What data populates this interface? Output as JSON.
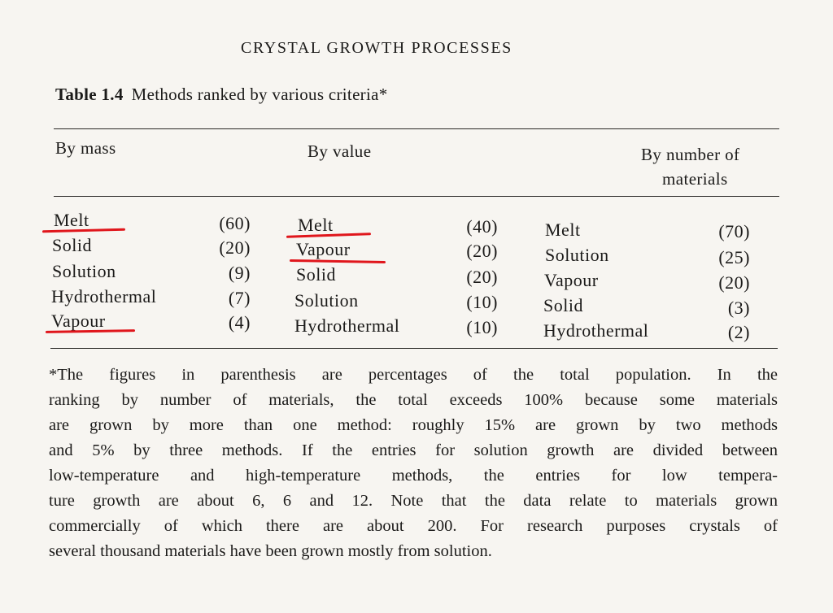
{
  "running_head": "CRYSTAL GROWTH PROCESSES",
  "table": {
    "label": "Table 1.4",
    "title": "Methods ranked by various criteria*",
    "columns": [
      {
        "header": "By mass",
        "rows": [
          {
            "method": "Melt",
            "pct": "(60)",
            "underlined": true
          },
          {
            "method": "Solid",
            "pct": "(20)",
            "underlined": false
          },
          {
            "method": "Solution",
            "pct": "(9)",
            "underlined": false
          },
          {
            "method": "Hydrothermal",
            "pct": "(7)",
            "underlined": false
          },
          {
            "method": "Vapour",
            "pct": "(4)",
            "underlined": true
          }
        ]
      },
      {
        "header": "By value",
        "rows": [
          {
            "method": "Melt",
            "pct": "(40)",
            "underlined": true
          },
          {
            "method": "Vapour",
            "pct": "(20)",
            "underlined": true
          },
          {
            "method": "Solid",
            "pct": "(20)",
            "underlined": false
          },
          {
            "method": "Solution",
            "pct": "(10)",
            "underlined": false
          },
          {
            "method": "Hydrothermal",
            "pct": "(10)",
            "underlined": false
          }
        ]
      },
      {
        "header_line1": "By number of",
        "header_line2": "materials",
        "rows": [
          {
            "method": "Melt",
            "pct": "(70)",
            "underlined": false
          },
          {
            "method": "Solution",
            "pct": "(25)",
            "underlined": false
          },
          {
            "method": "Vapour",
            "pct": "(20)",
            "underlined": false
          },
          {
            "method": "Solid",
            "pct": "(3)",
            "underlined": false
          },
          {
            "method": "Hydrothermal",
            "pct": "(2)",
            "underlined": false
          }
        ]
      }
    ]
  },
  "footnote_lines": [
    "*The figures in parenthesis are percentages of the total population. In the",
    "ranking by number of materials, the total exceeds 100% because some materials",
    "are grown by more than one method: roughly 15% are grown by two methods",
    "and 5% by three methods. If the entries for solution growth are divided between",
    "low-temperature and high-temperature methods, the entries for low tempera-",
    "ture growth are about 6, 6 and 12. Note that the data relate to materials grown",
    "commercially of which there are about 200. For research purposes crystals of",
    "several thousand materials have been grown mostly from solution."
  ],
  "colors": {
    "ink": "#1b1a19",
    "paper": "#f7f5f1",
    "highlight_pen": "#e0161c"
  }
}
